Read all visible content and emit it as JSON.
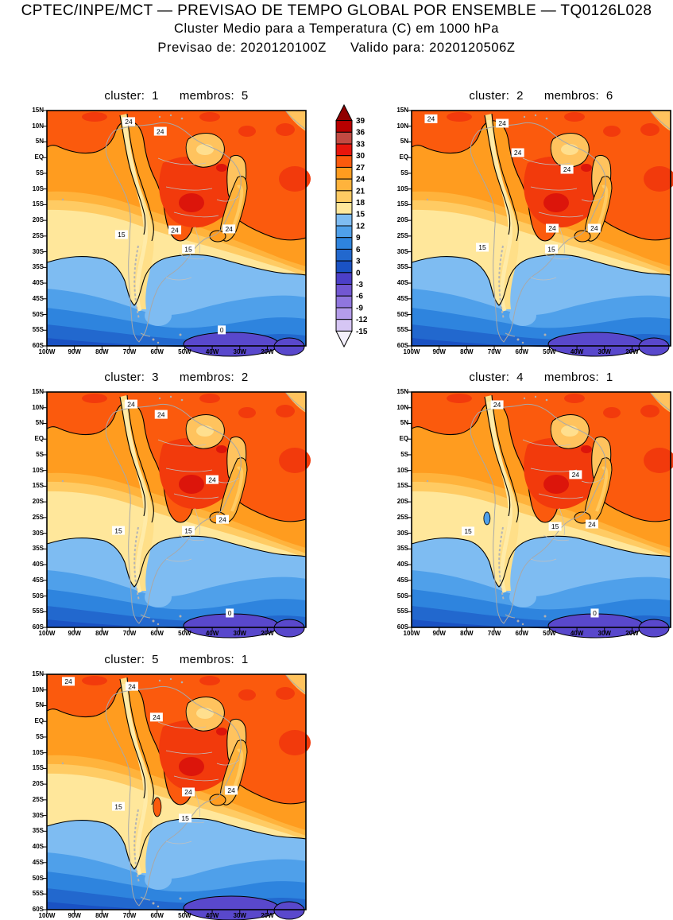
{
  "header": {
    "line1": "CPTEC/INPE/MCT — PREVISAO DE TEMPO GLOBAL POR ENSEMBLE — TQ0126L028",
    "line2": "Cluster Medio para a Temperatura (C) em 1000 hPa",
    "line3_left": "Previsao de: 2020120100Z",
    "line3_right": "Valido para: 2020120506Z"
  },
  "panel_title_labels": {
    "cluster": "cluster:",
    "membros": "membros:"
  },
  "chart_data": {
    "type": "contour-map-ensemble",
    "variable": "Cluster Medio para a Temperatura (C) em 1000 hPa",
    "contour_interval": 3,
    "lat_ticks": [
      "15N",
      "10N",
      "5N",
      "EQ",
      "5S",
      "10S",
      "15S",
      "20S",
      "25S",
      "30S",
      "35S",
      "40S",
      "45S",
      "50S",
      "55S",
      "60S"
    ],
    "lon_ticks": [
      "100W",
      "90W",
      "80W",
      "70W",
      "60W",
      "50W",
      "40W",
      "30W",
      "20W"
    ],
    "colorbar": {
      "levels": [
        39,
        36,
        33,
        30,
        27,
        24,
        21,
        18,
        15,
        12,
        9,
        6,
        3,
        0,
        -3,
        -6,
        -9,
        -12,
        -15
      ],
      "band_colors": [
        "#B80000",
        "#C34A42",
        "#E8150C",
        "#FB5A0D",
        "#FF9C1F",
        "#FFB33C",
        "#FFCB63",
        "#FFE79B",
        "#7EBCF2",
        "#4FA0EA",
        "#2E84DE",
        "#2268CE",
        "#1A52C4",
        "#4C3FC8",
        "#7257D2",
        "#9076DE",
        "#B49CEA",
        "#D6C6F4"
      ],
      "arrow_top_color": "#900000",
      "arrow_bottom_color": "#F4F0FC"
    },
    "map_colors": {
      "t24_27": "#FF9C1F",
      "t27_30": "#FB5A0D",
      "t30_33": "#F23A0C",
      "t33_36": "#DC150B",
      "t21_24": "#FFB33C",
      "t18_21": "#FFCB63",
      "t15_18": "#FFE79B",
      "t12_15": "#7EBCF2",
      "t9_12": "#4FA0EA",
      "t6_9": "#2E84DE",
      "t3_6": "#2268CE",
      "t0_3": "#1A52C4",
      "tm3_0": "#5948CC",
      "andes_fill": "#FFDF88",
      "andes_center": "#FFEBA8",
      "pocket_fill": "#FFC35E",
      "pocket_center": "#FFDF8E",
      "coast_gray": "#A8A8A8",
      "border_gray": "#C0C0C0",
      "contour": "#000000"
    },
    "panels": [
      {
        "cluster": "1",
        "membros": "5",
        "labels": [
          {
            "t": "24",
            "x": 0.316,
            "y": 0.047
          },
          {
            "t": "24",
            "x": 0.438,
            "y": 0.088
          },
          {
            "t": "24",
            "x": 0.494,
            "y": 0.507
          },
          {
            "t": "24",
            "x": 0.703,
            "y": 0.503
          },
          {
            "t": "15",
            "x": 0.288,
            "y": 0.527
          },
          {
            "t": "15",
            "x": 0.546,
            "y": 0.588
          },
          {
            "t": "0",
            "x": 0.675,
            "y": 0.932
          }
        ],
        "blobs": []
      },
      {
        "cluster": "2",
        "membros": "6",
        "labels": [
          {
            "t": "24",
            "x": 0.075,
            "y": 0.035
          },
          {
            "t": "24",
            "x": 0.35,
            "y": 0.054
          },
          {
            "t": "24",
            "x": 0.41,
            "y": 0.179
          },
          {
            "t": "24",
            "x": 0.6,
            "y": 0.25
          },
          {
            "t": "24",
            "x": 0.543,
            "y": 0.5
          },
          {
            "t": "24",
            "x": 0.705,
            "y": 0.5
          },
          {
            "t": "15",
            "x": 0.273,
            "y": 0.581
          },
          {
            "t": "15",
            "x": 0.54,
            "y": 0.588
          }
        ],
        "blobs": []
      },
      {
        "cluster": "3",
        "membros": "2",
        "labels": [
          {
            "t": "24",
            "x": 0.325,
            "y": 0.051
          },
          {
            "t": "24",
            "x": 0.441,
            "y": 0.095
          },
          {
            "t": "24",
            "x": 0.638,
            "y": 0.372
          },
          {
            "t": "24",
            "x": 0.678,
            "y": 0.541
          },
          {
            "t": "15",
            "x": 0.276,
            "y": 0.588
          },
          {
            "t": "15",
            "x": 0.546,
            "y": 0.588
          },
          {
            "t": "0",
            "x": 0.706,
            "y": 0.939
          }
        ],
        "blobs": []
      },
      {
        "cluster": "4",
        "membros": "1",
        "labels": [
          {
            "t": "24",
            "x": 0.33,
            "y": 0.054
          },
          {
            "t": "24",
            "x": 0.633,
            "y": 0.351
          },
          {
            "t": "24",
            "x": 0.696,
            "y": 0.561
          },
          {
            "t": "15",
            "x": 0.218,
            "y": 0.591
          },
          {
            "t": "15",
            "x": 0.554,
            "y": 0.571
          },
          {
            "t": "0",
            "x": 0.707,
            "y": 0.939
          }
        ],
        "blobs": [
          {
            "x": 0.291,
            "y": 0.537,
            "rx": 4,
            "ry": 8,
            "fill": "#4FA0EA",
            "stroke": "#000000"
          }
        ]
      },
      {
        "cluster": "5",
        "membros": "1",
        "labels": [
          {
            "t": "24",
            "x": 0.083,
            "y": 0.03
          },
          {
            "t": "24",
            "x": 0.328,
            "y": 0.051
          },
          {
            "t": "24",
            "x": 0.423,
            "y": 0.182
          },
          {
            "t": "24",
            "x": 0.546,
            "y": 0.5
          },
          {
            "t": "24",
            "x": 0.712,
            "y": 0.493
          },
          {
            "t": "15",
            "x": 0.276,
            "y": 0.561
          },
          {
            "t": "15",
            "x": 0.534,
            "y": 0.611
          }
        ],
        "blobs": [
          {
            "x": 0.426,
            "y": 0.564,
            "rx": 5,
            "ry": 12,
            "fill": "#FB5A0D",
            "stroke": "#000000"
          }
        ]
      }
    ]
  }
}
